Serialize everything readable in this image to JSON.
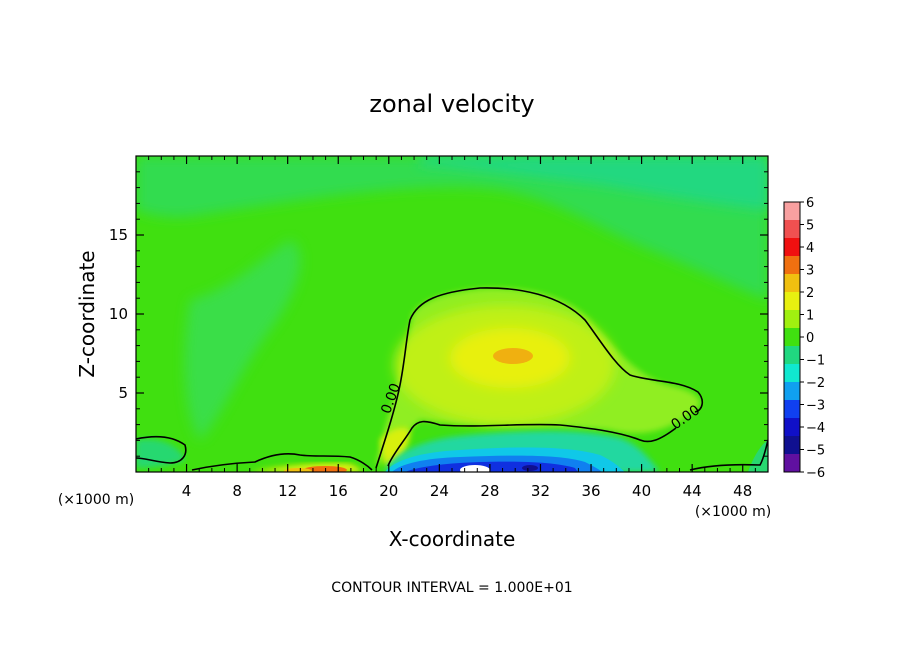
{
  "chart_data": {
    "type": "heatmap",
    "title": "zonal velocity",
    "xlabel": "X-coordinate",
    "ylabel": "Z-coordinate",
    "x_unit_left": "(×1000 m)",
    "x_unit_right": "(×1000 m)",
    "xlim": [
      0,
      50
    ],
    "ylim": [
      0,
      20
    ],
    "x_ticks": [
      4,
      8,
      12,
      16,
      20,
      24,
      28,
      32,
      36,
      40,
      44,
      48
    ],
    "y_ticks": [
      5,
      10,
      15
    ],
    "colorbar": {
      "levels": [
        6,
        5,
        4,
        3,
        2,
        1,
        0,
        -1,
        -2,
        -3,
        -4,
        -5,
        -6
      ],
      "colors": [
        "#f8a0a0",
        "#f05050",
        "#f01010",
        "#f07010",
        "#f0c010",
        "#e8f010",
        "#a0f010",
        "#40e010",
        "#20d880",
        "#10e8d0",
        "#10a0f0",
        "#1040f0",
        "#1010c8",
        "#101090",
        "#6010a0"
      ]
    },
    "contour_label": "0.00",
    "contour_interval_text": "CONTOUR INTERVAL = 1.000E+01"
  }
}
